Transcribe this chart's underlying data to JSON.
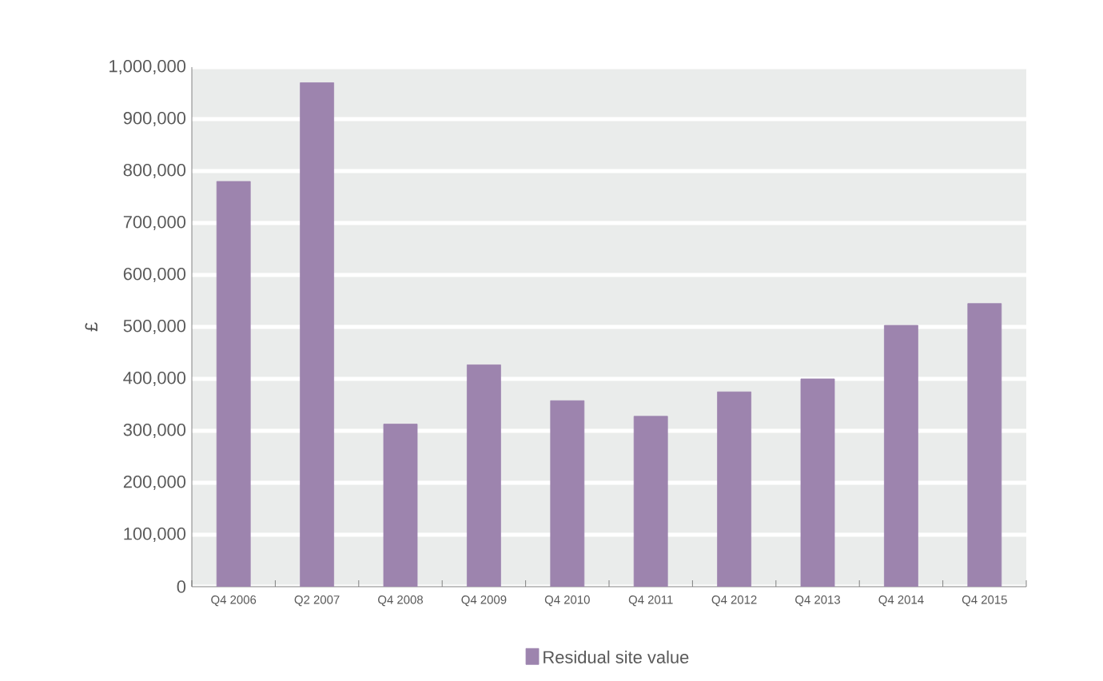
{
  "chart_data": {
    "type": "bar",
    "ylabel": "£",
    "categories": [
      "Q4 2006",
      "Q2 2007",
      "Q4 2008",
      "Q4 2009",
      "Q4 2010",
      "Q4 2011",
      "Q4 2012",
      "Q4 2013",
      "Q4 2014",
      "Q4 2015"
    ],
    "series": [
      {
        "name": "Residual site value",
        "color": "#9d84ae",
        "values": [
          780000,
          970000,
          313000,
          427000,
          358000,
          328000,
          375000,
          400000,
          503000,
          545000
        ]
      }
    ],
    "ylim": [
      0,
      1000000
    ],
    "yticks": [
      {
        "value": 0,
        "label": "0"
      },
      {
        "value": 100000,
        "label": "100,000"
      },
      {
        "value": 200000,
        "label": "200,000"
      },
      {
        "value": 300000,
        "label": "300,000"
      },
      {
        "value": 400000,
        "label": "400,000"
      },
      {
        "value": 500000,
        "label": "500,000"
      },
      {
        "value": 600000,
        "label": "600,000"
      },
      {
        "value": 700000,
        "label": "700,000"
      },
      {
        "value": 800000,
        "label": "800,000"
      },
      {
        "value": 900000,
        "label": "900,000"
      },
      {
        "value": 1000000,
        "label": "1,000,000"
      }
    ],
    "grid": "y",
    "legend": "bottom"
  }
}
